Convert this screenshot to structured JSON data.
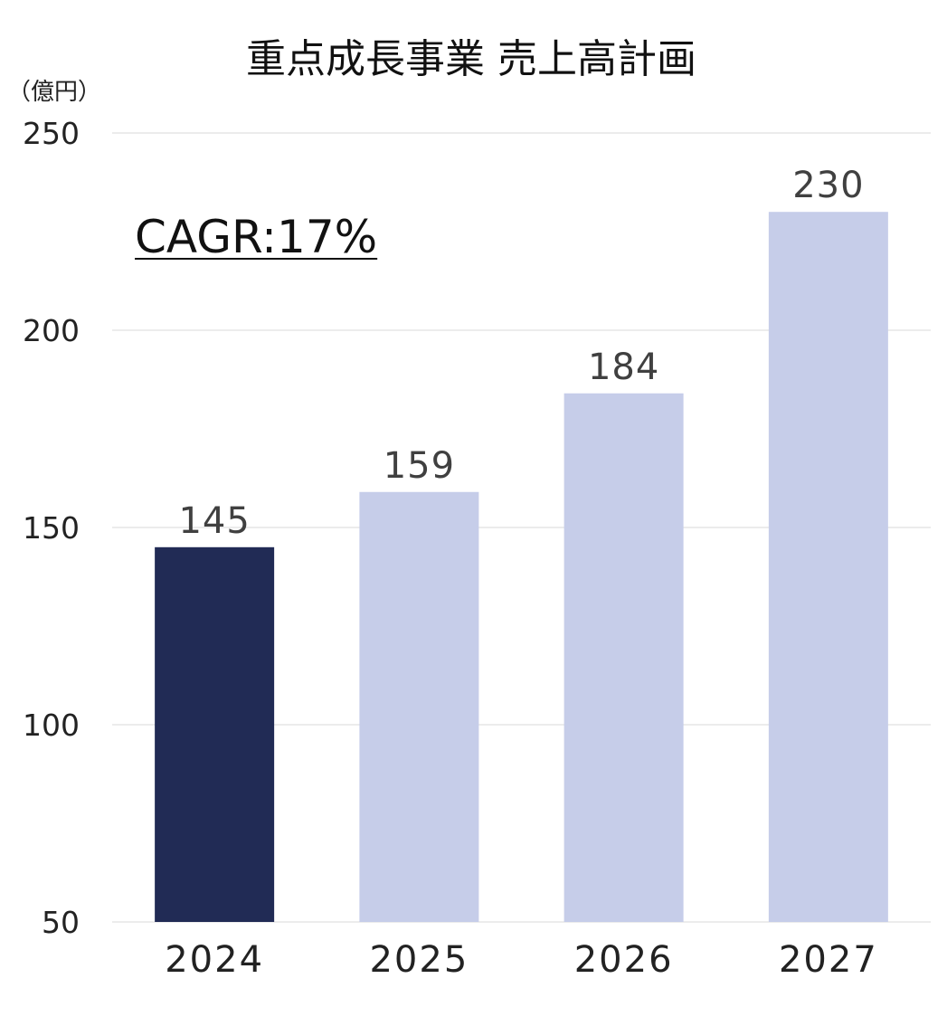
{
  "chart_data": {
    "type": "bar",
    "title": "重点成長事業 売上高計画",
    "unit_label": "（億円）",
    "categories": [
      "2024",
      "2025",
      "2026",
      "2027"
    ],
    "values": [
      145,
      159,
      184,
      230
    ],
    "data_labels": [
      "145",
      "159",
      "184",
      "230"
    ],
    "ylim": [
      50,
      250
    ],
    "yticks": [
      50,
      100,
      150,
      200,
      250
    ],
    "ytick_labels": [
      "50",
      "100",
      "150",
      "200",
      "250"
    ],
    "grid": true,
    "annotation": "CAGR:17%",
    "xlabel": "",
    "ylabel": "",
    "colors": {
      "actual": "#212b55",
      "plan": "#c6cde9",
      "grid": "#d9d9d9"
    },
    "bar_color_keys": [
      "actual",
      "plan",
      "plan",
      "plan"
    ]
  }
}
